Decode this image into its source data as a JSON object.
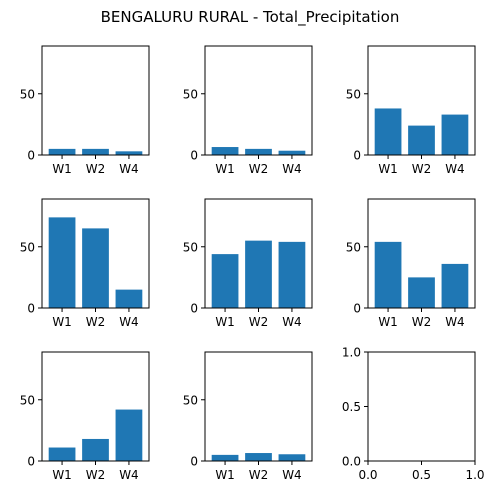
{
  "chart_data": {
    "title": "BENGALURU RURAL - Total_Precipitation",
    "bar_color": "#1f77b4",
    "layout": "3x3 grid",
    "panels": [
      {
        "type": "bar",
        "categories": [
          "W1",
          "W2",
          "W4"
        ],
        "values": [
          5,
          5,
          3
        ],
        "ylim": [
          0,
          89
        ],
        "yticks": [
          0,
          50
        ]
      },
      {
        "type": "bar",
        "categories": [
          "W1",
          "W2",
          "W4"
        ],
        "values": [
          6.5,
          5,
          3.5
        ],
        "ylim": [
          0,
          89
        ],
        "yticks": [
          0,
          50
        ]
      },
      {
        "type": "bar",
        "categories": [
          "W1",
          "W2",
          "W4"
        ],
        "values": [
          38,
          24,
          33
        ],
        "ylim": [
          0,
          89
        ],
        "yticks": [
          0,
          50
        ]
      },
      {
        "type": "bar",
        "categories": [
          "W1",
          "W2",
          "W4"
        ],
        "values": [
          74,
          65,
          15
        ],
        "ylim": [
          0,
          89
        ],
        "yticks": [
          0,
          50
        ]
      },
      {
        "type": "bar",
        "categories": [
          "W1",
          "W2",
          "W4"
        ],
        "values": [
          44,
          55,
          54
        ],
        "ylim": [
          0,
          89
        ],
        "yticks": [
          0,
          50
        ]
      },
      {
        "type": "bar",
        "categories": [
          "W1",
          "W2",
          "W4"
        ],
        "values": [
          54,
          25,
          36
        ],
        "ylim": [
          0,
          89
        ],
        "yticks": [
          0,
          50
        ]
      },
      {
        "type": "bar",
        "categories": [
          "W1",
          "W2",
          "W4"
        ],
        "values": [
          11,
          18,
          42
        ],
        "ylim": [
          0,
          89
        ],
        "yticks": [
          0,
          50
        ]
      },
      {
        "type": "bar",
        "categories": [
          "W1",
          "W2",
          "W4"
        ],
        "values": [
          5,
          6.5,
          5.5
        ],
        "ylim": [
          0,
          89
        ],
        "yticks": [
          0,
          50
        ]
      },
      {
        "type": "empty",
        "categories": [],
        "values": [],
        "xlim": [
          0,
          1
        ],
        "ylim": [
          0,
          1
        ],
        "xtick_labels": [
          "0.0",
          "0.5",
          "1.0"
        ],
        "ytick_labels": [
          "0.0",
          "0.5",
          "1.0"
        ]
      }
    ]
  }
}
